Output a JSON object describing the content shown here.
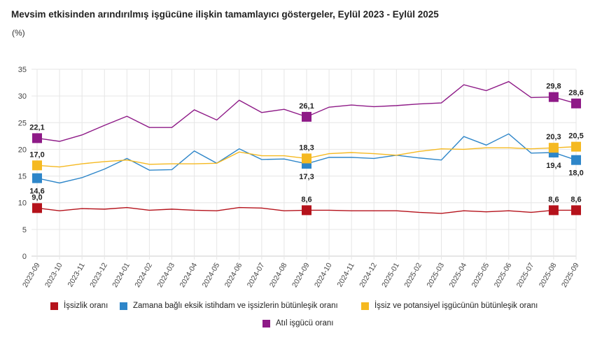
{
  "title": "Mevsim etkisinden arındırılmış işgücüne ilişkin tamamlayıcı göstergeler, Eylül 2023 - Eylül 2025",
  "unit": "(%)",
  "chart_data": {
    "type": "line",
    "title": "Mevsim etkisinden arındırılmış işgücüne ilişkin tamamlayıcı göstergeler, Eylül 2023 - Eylül 2025",
    "ylabel": "(%)",
    "ylim": [
      0,
      35
    ],
    "yticks": [
      0,
      5,
      10,
      15,
      20,
      25,
      30,
      35
    ],
    "grid": true,
    "legend": "bottom",
    "categories": [
      "2023-09",
      "2023-10",
      "2023-11",
      "2023-12",
      "2024-01",
      "2024-02",
      "2024-03",
      "2024-04",
      "2024-05",
      "2024-06",
      "2024-07",
      "2024-08",
      "2024-09",
      "2024-10",
      "2024-11",
      "2024-12",
      "2025-01",
      "2025-02",
      "2025-03",
      "2025-04",
      "2025-05",
      "2025-06",
      "2025-07",
      "2025-08",
      "2025-09"
    ],
    "series": [
      {
        "name": "İşsizlik oranı",
        "color": "#b5121b",
        "labelPos": "above",
        "values": [
          9.0,
          8.5,
          8.9,
          8.8,
          9.1,
          8.6,
          8.8,
          8.6,
          8.5,
          9.1,
          9.0,
          8.5,
          8.6,
          8.6,
          8.5,
          8.5,
          8.5,
          8.2,
          8.0,
          8.5,
          8.3,
          8.5,
          8.2,
          8.6,
          8.6
        ],
        "labeled": {
          "0": "9,0",
          "12": "8,6",
          "23": "8,6",
          "24": "8,6"
        }
      },
      {
        "name": "Zamana bağlı eksik istihdam ve işsizlerin bütünleşik oranı",
        "color": "#2e86c9",
        "labelPos": "below",
        "values": [
          14.6,
          13.7,
          14.7,
          16.3,
          18.3,
          16.1,
          16.2,
          19.7,
          17.4,
          20.1,
          18.1,
          18.2,
          17.3,
          18.5,
          18.5,
          18.3,
          18.9,
          18.4,
          18.0,
          22.4,
          20.8,
          22.9,
          19.3,
          19.4,
          18.0
        ],
        "labeled": {
          "0": "14,6",
          "12": "17,3",
          "23": "19,4",
          "24": "18,0"
        }
      },
      {
        "name": "İşsiz ve potansiyel işgücünün bütünleşik oranı",
        "color": "#f5b921",
        "labelPos": "above",
        "values": [
          17.0,
          16.7,
          17.3,
          17.7,
          18.0,
          17.2,
          17.3,
          17.3,
          17.4,
          19.5,
          18.8,
          18.8,
          18.3,
          19.2,
          19.4,
          19.2,
          18.9,
          19.6,
          20.1,
          20.0,
          20.3,
          20.3,
          20.1,
          20.3,
          20.5
        ],
        "labeled": {
          "0": "17,0",
          "12": "18,3",
          "23": "20,3",
          "24": "20,5"
        }
      },
      {
        "name": "Atıl işgücü oranı",
        "color": "#8e1a87",
        "labelPos": "above",
        "values": [
          22.1,
          21.5,
          22.7,
          24.5,
          26.2,
          24.1,
          24.1,
          27.4,
          25.5,
          29.2,
          26.9,
          27.5,
          26.1,
          27.9,
          28.3,
          28.0,
          28.2,
          28.5,
          28.7,
          32.1,
          31.0,
          32.7,
          29.7,
          29.8,
          28.6
        ],
        "labeled": {
          "0": "22,1",
          "12": "26,1",
          "23": "29,8",
          "24": "28,6"
        }
      }
    ]
  }
}
